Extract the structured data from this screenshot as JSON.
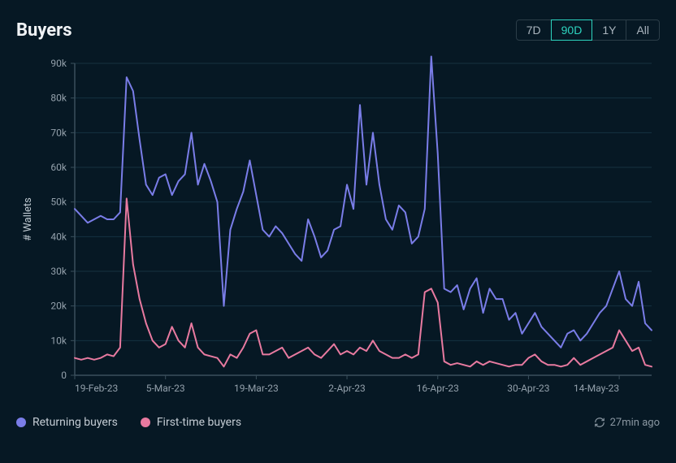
{
  "title": "Buyers",
  "ranges": [
    {
      "label": "7D",
      "active": false
    },
    {
      "label": "90D",
      "active": true
    },
    {
      "label": "1Y",
      "active": false
    },
    {
      "label": "All",
      "active": false
    }
  ],
  "legend": {
    "returning": {
      "label": "Returning buyers",
      "color": "#7a7de8"
    },
    "first": {
      "label": "First-time buyers",
      "color": "#e87aa0"
    }
  },
  "refresh": {
    "label": "27min ago",
    "icon": "refresh-icon"
  },
  "chart": {
    "type": "line",
    "background_color": "#061824",
    "grid_color": "#153241",
    "axis_color": "#3a4f5c",
    "tick_color": "#93a0ab",
    "tick_fontsize": 12,
    "line_width": 2,
    "ylabel": "# Wallets",
    "ylabel_fontsize": 13,
    "ylim": [
      0,
      90000
    ],
    "yticks": [
      0,
      10000,
      20000,
      30000,
      40000,
      50000,
      60000,
      70000,
      80000,
      90000
    ],
    "ytick_labels": [
      "0",
      "10k",
      "20k",
      "30k",
      "40k",
      "50k",
      "60k",
      "70k",
      "80k",
      "90k"
    ],
    "xticks_idx": [
      0,
      14,
      28,
      42,
      56,
      70,
      84
    ],
    "xtick_labels": [
      "19-Feb-23",
      "5-Mar-23",
      "19-Mar-23",
      "2-Apr-23",
      "16-Apr-23",
      "30-Apr-23",
      "14-May-23"
    ],
    "n_points": 90,
    "series": {
      "returning": {
        "color": "#7a7de8",
        "values": [
          48000,
          46000,
          44000,
          45000,
          46000,
          45000,
          45000,
          47000,
          86000,
          82000,
          68000,
          55000,
          52000,
          57000,
          58000,
          52000,
          56000,
          58000,
          70000,
          55000,
          61000,
          56000,
          50000,
          20000,
          42000,
          48000,
          53000,
          62000,
          52000,
          42000,
          40000,
          43000,
          41000,
          38000,
          35000,
          33000,
          45000,
          40000,
          34000,
          36000,
          42000,
          43000,
          55000,
          48000,
          78000,
          55000,
          70000,
          55000,
          45000,
          42000,
          49000,
          47000,
          38000,
          40000,
          48000,
          92000,
          64000,
          25000,
          24000,
          26000,
          19000,
          25000,
          28000,
          18000,
          25000,
          22000,
          22000,
          16000,
          18000,
          12000,
          15000,
          18000,
          14000,
          12000,
          10000,
          8000,
          12000,
          13000,
          10000,
          12000,
          15000,
          18000,
          20000,
          25000,
          30000,
          22000,
          20000,
          27000,
          15000,
          13000
        ]
      },
      "first": {
        "color": "#e87aa0",
        "values": [
          5000,
          4500,
          5000,
          4500,
          5000,
          6000,
          5500,
          8000,
          51000,
          32000,
          22000,
          15000,
          10000,
          8000,
          9000,
          14000,
          10000,
          8000,
          15000,
          8000,
          6000,
          5500,
          5000,
          2500,
          6000,
          5000,
          8000,
          12000,
          13000,
          6000,
          6000,
          7000,
          8000,
          5000,
          6000,
          7000,
          8000,
          6000,
          5000,
          7000,
          9000,
          6000,
          7000,
          6000,
          8000,
          7000,
          10000,
          7000,
          6000,
          5000,
          5000,
          6000,
          5000,
          6000,
          24000,
          25000,
          21000,
          4000,
          3000,
          3500,
          3000,
          2500,
          4000,
          3000,
          4000,
          3500,
          3000,
          2500,
          3000,
          3000,
          5000,
          6000,
          4000,
          3000,
          3000,
          2500,
          3000,
          5000,
          3000,
          4000,
          5000,
          6000,
          7000,
          8000,
          13000,
          10000,
          7000,
          8000,
          3000,
          2500
        ]
      }
    }
  }
}
